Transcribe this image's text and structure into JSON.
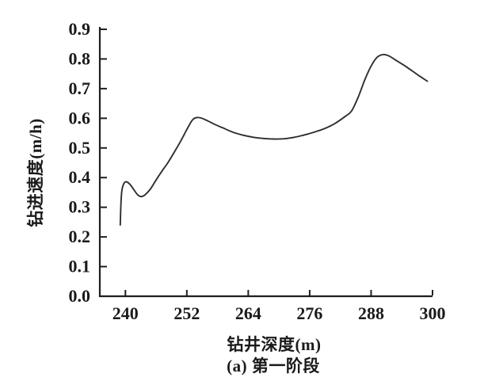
{
  "window": {
    "background": "#ffffff"
  },
  "chart_data": {
    "type": "line",
    "title": "",
    "xlabel": "钻井深度(m)",
    "ylabel": "钻进速度(m/h)",
    "caption": "(a) 第一阶段",
    "xlim": [
      235,
      300
    ],
    "ylim": [
      0,
      0.9
    ],
    "x_ticks": [
      "240",
      "252",
      "264",
      "276",
      "288",
      "300"
    ],
    "x_tick_values": [
      240,
      252,
      264,
      276,
      288,
      300
    ],
    "y_ticks": [
      "0.0",
      "0.1",
      "0.2",
      "0.3",
      "0.4",
      "0.5",
      "0.6",
      "0.7",
      "0.8",
      "0.9"
    ],
    "y_tick_values": [
      0,
      0.1,
      0.2,
      0.3,
      0.4,
      0.5,
      0.6,
      0.7,
      0.8,
      0.9
    ],
    "grid": false,
    "legend": "none",
    "axis_color": "#1f1f1f",
    "line_color": "#2e2e2e",
    "text_color": "#1a1a1a",
    "series": [
      {
        "points": [
          [
            239.0,
            0.24
          ],
          [
            239.1,
            0.3
          ],
          [
            239.3,
            0.355
          ],
          [
            239.7,
            0.38
          ],
          [
            240.2,
            0.386
          ],
          [
            240.9,
            0.377
          ],
          [
            241.7,
            0.358
          ],
          [
            242.4,
            0.342
          ],
          [
            243.1,
            0.336
          ],
          [
            243.9,
            0.343
          ],
          [
            244.9,
            0.362
          ],
          [
            246.0,
            0.392
          ],
          [
            247.1,
            0.421
          ],
          [
            248.3,
            0.45
          ],
          [
            249.6,
            0.487
          ],
          [
            250.8,
            0.523
          ],
          [
            252.0,
            0.562
          ],
          [
            253.0,
            0.592
          ],
          [
            253.8,
            0.602
          ],
          [
            254.8,
            0.601
          ],
          [
            256.0,
            0.592
          ],
          [
            257.5,
            0.579
          ],
          [
            259.0,
            0.568
          ],
          [
            261.0,
            0.553
          ],
          [
            263.0,
            0.543
          ],
          [
            265.0,
            0.536
          ],
          [
            267.0,
            0.532
          ],
          [
            269.0,
            0.53
          ],
          [
            271.0,
            0.531
          ],
          [
            273.0,
            0.536
          ],
          [
            275.0,
            0.544
          ],
          [
            277.0,
            0.554
          ],
          [
            279.0,
            0.566
          ],
          [
            281.0,
            0.583
          ],
          [
            283.0,
            0.607
          ],
          [
            284.2,
            0.625
          ],
          [
            285.5,
            0.672
          ],
          [
            286.8,
            0.731
          ],
          [
            288.0,
            0.776
          ],
          [
            289.2,
            0.806
          ],
          [
            290.4,
            0.815
          ],
          [
            291.5,
            0.81
          ],
          [
            293.0,
            0.794
          ],
          [
            294.5,
            0.778
          ],
          [
            296.0,
            0.76
          ],
          [
            297.5,
            0.742
          ],
          [
            299.0,
            0.725
          ]
        ]
      }
    ]
  }
}
